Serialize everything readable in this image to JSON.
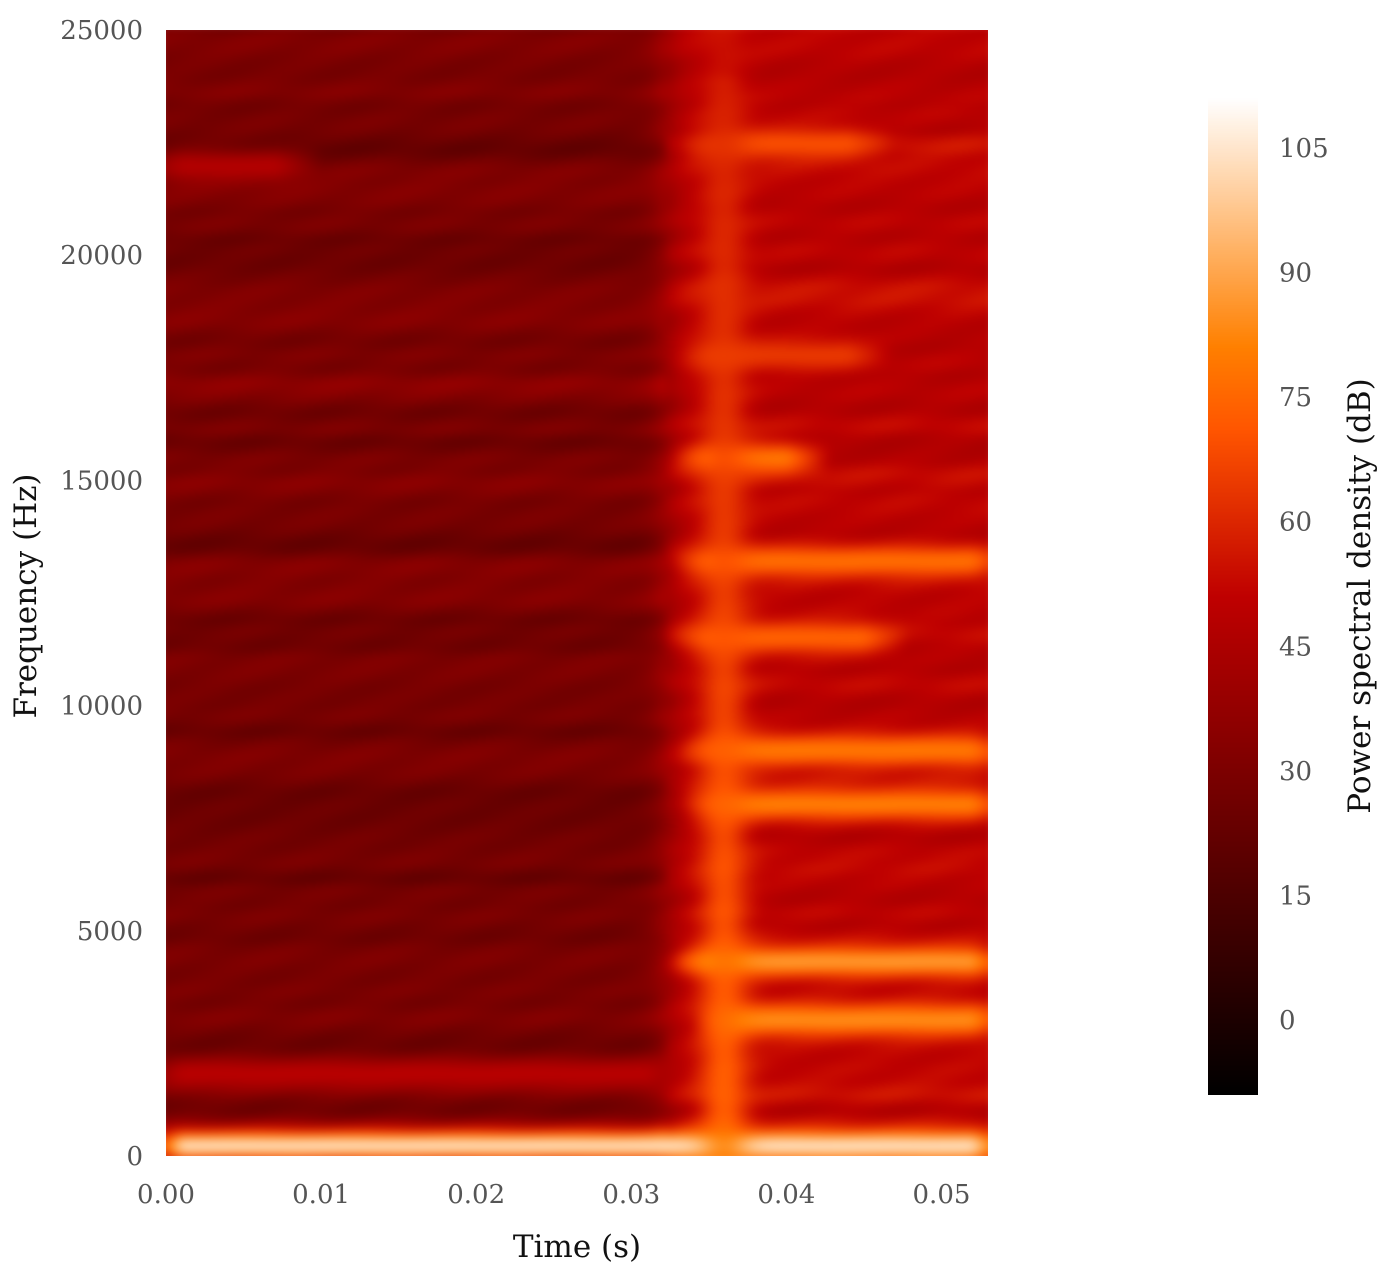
{
  "chart_data": {
    "type": "heatmap",
    "title": "",
    "xlabel": "Time (s)",
    "ylabel": "Frequency (Hz)",
    "colorbar_label": "Power spectral density (dB)",
    "xlim": [
      0.0,
      0.053
    ],
    "ylim": [
      0,
      25000
    ],
    "x_ticks": [
      "0.00",
      "0.01",
      "0.02",
      "0.03",
      "0.04",
      "0.05"
    ],
    "x_tick_values": [
      0.0,
      0.01,
      0.02,
      0.03,
      0.04,
      0.05
    ],
    "y_ticks": [
      "0",
      "5000",
      "10000",
      "15000",
      "20000",
      "25000"
    ],
    "y_tick_values": [
      0,
      5000,
      10000,
      15000,
      20000,
      25000
    ],
    "colorbar_ticks": [
      "0",
      "15",
      "30",
      "45",
      "60",
      "75",
      "90",
      "105"
    ],
    "colorbar_tick_values": [
      0,
      15,
      30,
      45,
      60,
      75,
      90,
      105
    ],
    "colorbar_range": [
      -9,
      111
    ],
    "colormap": "gist_heat",
    "grid": false,
    "regions": [
      {
        "t_start": 0.0,
        "t_end": 0.032,
        "level_db": 28,
        "description_level": "low"
      },
      {
        "t_start": 0.032,
        "t_end": 0.053,
        "level_db": 50,
        "description_level": "high"
      }
    ],
    "bright_bands": [
      {
        "freq_hz": 200,
        "t_start": 0.0,
        "t_end": 0.053,
        "level_db": 105
      },
      {
        "freq_hz": 1800,
        "t_start": 0.0,
        "t_end": 0.032,
        "level_db": 50
      },
      {
        "freq_hz": 3000,
        "t_start": 0.036,
        "t_end": 0.053,
        "level_db": 85
      },
      {
        "freq_hz": 4300,
        "t_start": 0.034,
        "t_end": 0.053,
        "level_db": 88
      },
      {
        "freq_hz": 7800,
        "t_start": 0.035,
        "t_end": 0.053,
        "level_db": 82
      },
      {
        "freq_hz": 9000,
        "t_start": 0.035,
        "t_end": 0.053,
        "level_db": 80
      },
      {
        "freq_hz": 11500,
        "t_start": 0.034,
        "t_end": 0.046,
        "level_db": 75
      },
      {
        "freq_hz": 13200,
        "t_start": 0.034,
        "t_end": 0.053,
        "level_db": 78
      },
      {
        "freq_hz": 15500,
        "t_start": 0.034,
        "t_end": 0.041,
        "level_db": 80
      },
      {
        "freq_hz": 17800,
        "t_start": 0.034,
        "t_end": 0.045,
        "level_db": 65
      },
      {
        "freq_hz": 22500,
        "t_start": 0.035,
        "t_end": 0.045,
        "level_db": 70
      },
      {
        "freq_hz": 22000,
        "t_start": 0.0,
        "t_end": 0.008,
        "level_db": 48
      }
    ],
    "transient": {
      "t": 0.036,
      "level_db": 80
    }
  }
}
